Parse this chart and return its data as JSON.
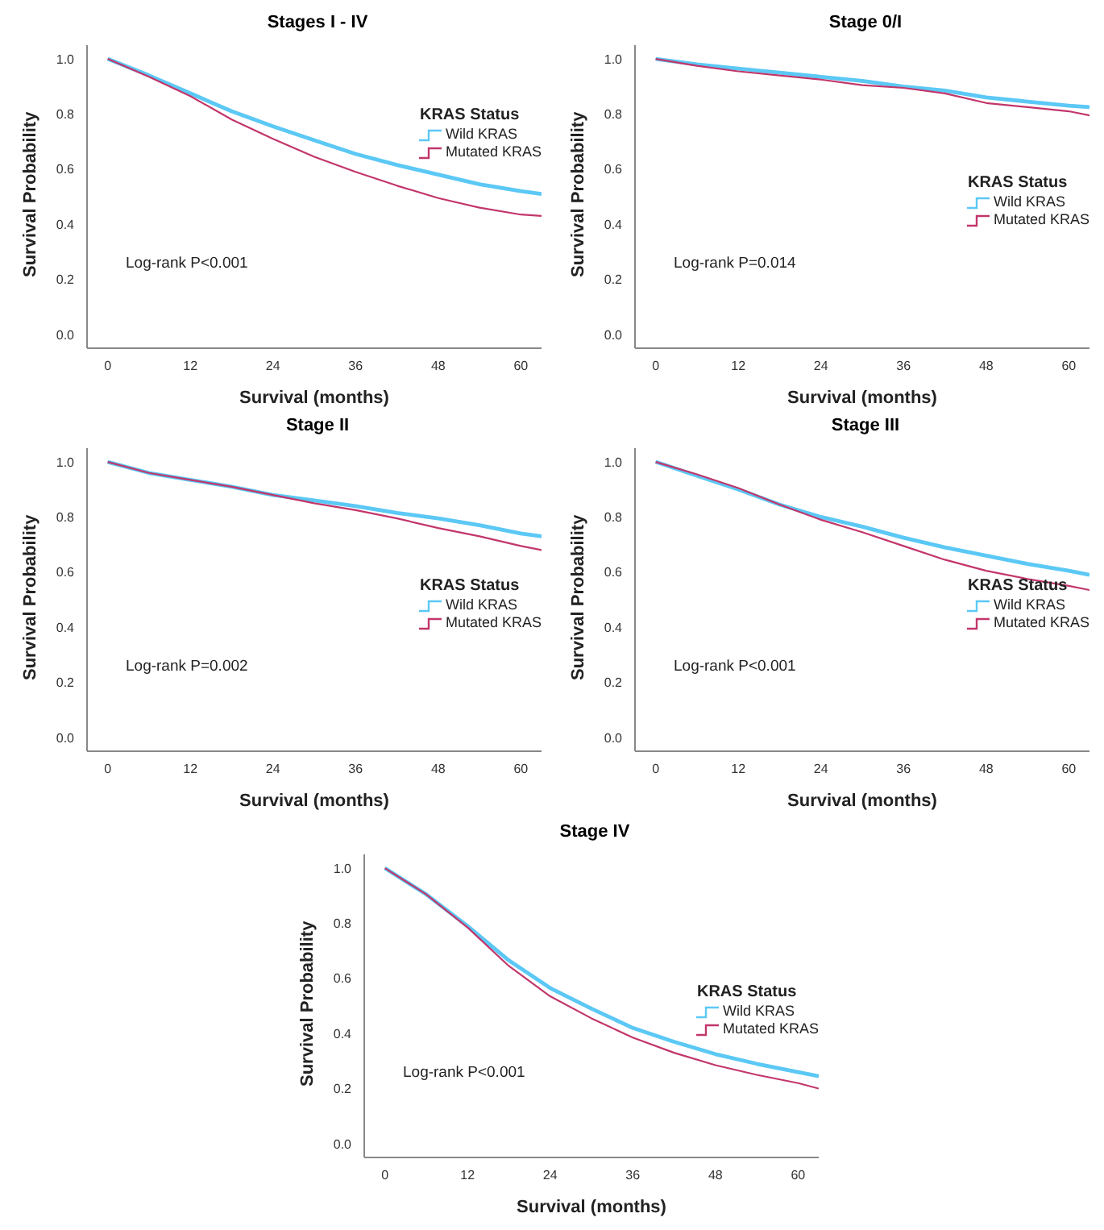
{
  "chart_data": [
    {
      "type": "line",
      "title": "Stages I - IV",
      "xlabel": "Survival (months)",
      "ylabel": "Survival Probability",
      "legend_title": "KRAS Status",
      "legend": "top right",
      "annotations": [
        "Log-rank P<0.001"
      ],
      "x": [
        0,
        6,
        12,
        18,
        24,
        30,
        36,
        42,
        48,
        54,
        60,
        63
      ],
      "xlim": [
        -3,
        63
      ],
      "xticks": [
        0,
        12,
        24,
        36,
        48,
        60
      ],
      "ylim": [
        -0.05,
        1.05
      ],
      "yticks": [
        {
          "value": 0,
          "label": "0.0"
        },
        {
          "value": 0.2,
          "label": "0.2"
        },
        {
          "value": 0.4,
          "label": "0.4"
        },
        {
          "value": 0.6,
          "label": "0.6"
        },
        {
          "value": 0.8,
          "label": "0.8"
        },
        {
          "value": 1,
          "label": "1.0"
        }
      ],
      "series": [
        {
          "name": "Wild KRAS",
          "color": "#5bc8f5",
          "values": [
            1.0,
            0.94,
            0.875,
            0.81,
            0.755,
            0.705,
            0.655,
            0.615,
            0.58,
            0.545,
            0.52,
            0.51
          ]
        },
        {
          "name": "Mutated KRAS",
          "color": "#c2366b",
          "values": [
            1.0,
            0.935,
            0.865,
            0.78,
            0.71,
            0.645,
            0.59,
            0.54,
            0.495,
            0.46,
            0.435,
            0.43
          ]
        }
      ]
    },
    {
      "type": "line",
      "title": "Stage 0/I",
      "xlabel": "Survival (months)",
      "ylabel": "Survival Probability",
      "legend_title": "KRAS Status",
      "legend": "right",
      "annotations": [
        "Log-rank P=0.014"
      ],
      "x": [
        0,
        6,
        12,
        18,
        24,
        30,
        36,
        42,
        48,
        54,
        60,
        63
      ],
      "xlim": [
        -3,
        63
      ],
      "xticks": [
        0,
        12,
        24,
        36,
        48,
        60
      ],
      "ylim": [
        -0.05,
        1.05
      ],
      "yticks": [
        {
          "value": 0,
          "label": "0.0"
        },
        {
          "value": 0.2,
          "label": "0.2"
        },
        {
          "value": 0.4,
          "label": "0.4"
        },
        {
          "value": 0.6,
          "label": "0.6"
        },
        {
          "value": 0.8,
          "label": "0.8"
        },
        {
          "value": 1,
          "label": "1.0"
        }
      ],
      "series": [
        {
          "name": "Wild KRAS",
          "color": "#5bc8f5",
          "values": [
            1.0,
            0.98,
            0.965,
            0.95,
            0.935,
            0.92,
            0.9,
            0.885,
            0.86,
            0.845,
            0.83,
            0.825
          ]
        },
        {
          "name": "Mutated KRAS",
          "color": "#c2366b",
          "values": [
            1.0,
            0.975,
            0.955,
            0.94,
            0.925,
            0.905,
            0.895,
            0.875,
            0.84,
            0.825,
            0.81,
            0.795
          ]
        }
      ]
    },
    {
      "type": "line",
      "title": "Stage II",
      "xlabel": "Survival (months)",
      "ylabel": "Survival Probability",
      "legend_title": "KRAS Status",
      "legend": "right",
      "annotations": [
        "Log-rank P=0.002"
      ],
      "x": [
        0,
        6,
        12,
        18,
        24,
        30,
        36,
        42,
        48,
        54,
        60,
        63
      ],
      "xlim": [
        -3,
        63
      ],
      "xticks": [
        0,
        12,
        24,
        36,
        48,
        60
      ],
      "ylim": [
        -0.05,
        1.05
      ],
      "yticks": [
        {
          "value": 0,
          "label": "0.0"
        },
        {
          "value": 0.2,
          "label": "0.2"
        },
        {
          "value": 0.4,
          "label": "0.4"
        },
        {
          "value": 0.6,
          "label": "0.6"
        },
        {
          "value": 0.8,
          "label": "0.8"
        },
        {
          "value": 1,
          "label": "1.0"
        }
      ],
      "series": [
        {
          "name": "Wild KRAS",
          "color": "#5bc8f5",
          "values": [
            1.0,
            0.96,
            0.935,
            0.91,
            0.88,
            0.86,
            0.84,
            0.815,
            0.795,
            0.77,
            0.74,
            0.73
          ]
        },
        {
          "name": "Mutated KRAS",
          "color": "#c2366b",
          "values": [
            1.0,
            0.96,
            0.935,
            0.91,
            0.88,
            0.85,
            0.825,
            0.795,
            0.76,
            0.73,
            0.695,
            0.68
          ]
        }
      ]
    },
    {
      "type": "line",
      "title": "Stage III",
      "xlabel": "Survival (months)",
      "ylabel": "Survival Probability",
      "legend_title": "KRAS Status",
      "legend": "right",
      "annotations": [
        "Log-rank P<0.001"
      ],
      "x": [
        0,
        6,
        12,
        18,
        24,
        30,
        36,
        42,
        48,
        54,
        60,
        63
      ],
      "xlim": [
        -3,
        63
      ],
      "xticks": [
        0,
        12,
        24,
        36,
        48,
        60
      ],
      "ylim": [
        -0.05,
        1.05
      ],
      "yticks": [
        {
          "value": 0,
          "label": "0.0"
        },
        {
          "value": 0.2,
          "label": "0.2"
        },
        {
          "value": 0.4,
          "label": "0.4"
        },
        {
          "value": 0.6,
          "label": "0.6"
        },
        {
          "value": 0.8,
          "label": "0.8"
        },
        {
          "value": 1,
          "label": "1.0"
        }
      ],
      "series": [
        {
          "name": "Wild KRAS",
          "color": "#5bc8f5",
          "values": [
            1.0,
            0.95,
            0.9,
            0.845,
            0.8,
            0.765,
            0.725,
            0.69,
            0.66,
            0.63,
            0.605,
            0.59
          ]
        },
        {
          "name": "Mutated KRAS",
          "color": "#c2366b",
          "values": [
            1.0,
            0.955,
            0.905,
            0.845,
            0.79,
            0.745,
            0.695,
            0.645,
            0.605,
            0.575,
            0.55,
            0.535
          ]
        }
      ]
    },
    {
      "type": "line",
      "title": "Stage IV",
      "xlabel": "Survival (months)",
      "ylabel": "Survival Probability",
      "legend_title": "KRAS Status",
      "legend": "right",
      "annotations": [
        "Log-rank P<0.001"
      ],
      "x": [
        0,
        6,
        12,
        18,
        24,
        30,
        36,
        42,
        48,
        54,
        60,
        63
      ],
      "xlim": [
        -3,
        63
      ],
      "xticks": [
        0,
        12,
        24,
        36,
        48,
        60
      ],
      "ylim": [
        -0.05,
        1.05
      ],
      "yticks": [
        {
          "value": 0,
          "label": "0.0"
        },
        {
          "value": 0.2,
          "label": "0.2"
        },
        {
          "value": 0.4,
          "label": "0.4"
        },
        {
          "value": 0.6,
          "label": "0.6"
        },
        {
          "value": 0.8,
          "label": "0.8"
        },
        {
          "value": 1,
          "label": "1.0"
        }
      ],
      "series": [
        {
          "name": "Wild KRAS",
          "color": "#5bc8f5",
          "values": [
            1.0,
            0.905,
            0.79,
            0.665,
            0.565,
            0.49,
            0.42,
            0.37,
            0.325,
            0.29,
            0.26,
            0.245
          ]
        },
        {
          "name": "Mutated KRAS",
          "color": "#c2366b",
          "values": [
            1.0,
            0.905,
            0.785,
            0.645,
            0.535,
            0.455,
            0.385,
            0.33,
            0.285,
            0.25,
            0.22,
            0.2
          ]
        }
      ]
    }
  ]
}
